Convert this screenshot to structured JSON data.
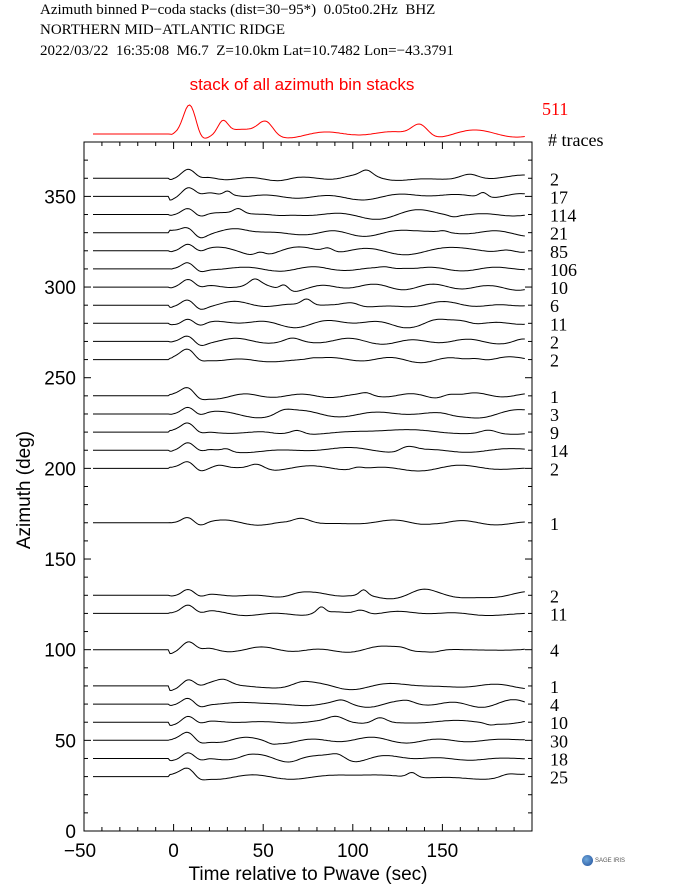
{
  "header": {
    "line1": "Azimuth binned P−coda stacks (dist=30−95*)  0.05to0.2Hz  BHZ",
    "line2": "NORTHERN MID−ATLANTIC RIDGE",
    "line3": "2022/03/22  16:35:08  M6.7  Z=10.0km Lat=10.7482 Lon=−43.3791"
  },
  "logo_text": "SAGE IRIS",
  "chart_data": {
    "type": "line",
    "title": "",
    "xlabel": "Time relative to Pwave (sec)",
    "ylabel": "Azimuth (deg)",
    "xlim": [
      -50,
      200
    ],
    "ylim": [
      0,
      380
    ],
    "xticks": [
      -50,
      0,
      50,
      100,
      150
    ],
    "yticks": [
      0,
      50,
      100,
      150,
      200,
      250,
      300,
      350
    ],
    "grid": false,
    "trace_count_header": "# traces",
    "stack": {
      "label": "stack of all azimuth bin stacks",
      "count": 511,
      "color": "#ff0000"
    },
    "traces_color": "#000000",
    "series": [
      {
        "azimuth": 360,
        "count": 2
      },
      {
        "azimuth": 350,
        "count": 17
      },
      {
        "azimuth": 340,
        "count": 114
      },
      {
        "azimuth": 330,
        "count": 21
      },
      {
        "azimuth": 320,
        "count": 85
      },
      {
        "azimuth": 310,
        "count": 106
      },
      {
        "azimuth": 300,
        "count": 10
      },
      {
        "azimuth": 290,
        "count": 6
      },
      {
        "azimuth": 280,
        "count": 11
      },
      {
        "azimuth": 270,
        "count": 2
      },
      {
        "azimuth": 260,
        "count": 2
      },
      {
        "azimuth": 240,
        "count": 1
      },
      {
        "azimuth": 230,
        "count": 3
      },
      {
        "azimuth": 220,
        "count": 9
      },
      {
        "azimuth": 210,
        "count": 14
      },
      {
        "azimuth": 200,
        "count": 2
      },
      {
        "azimuth": 170,
        "count": 1
      },
      {
        "azimuth": 130,
        "count": 2
      },
      {
        "azimuth": 120,
        "count": 11
      },
      {
        "azimuth": 100,
        "count": 4
      },
      {
        "azimuth": 80,
        "count": 1
      },
      {
        "azimuth": 70,
        "count": 4
      },
      {
        "azimuth": 60,
        "count": 10
      },
      {
        "azimuth": 50,
        "count": 30
      },
      {
        "azimuth": 40,
        "count": 18
      },
      {
        "azimuth": 30,
        "count": 25
      }
    ]
  }
}
